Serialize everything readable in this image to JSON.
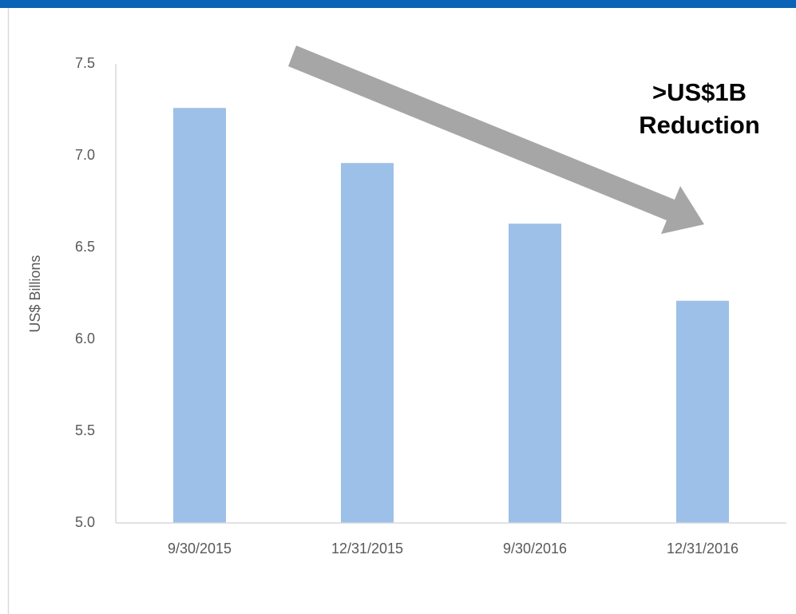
{
  "chart_data": {
    "type": "bar",
    "y_label": "US$ Billions",
    "annotation": [
      ">US$1B",
      "Reduction"
    ],
    "categories": [
      "9/30/2015",
      "12/31/2015",
      "9/30/2016",
      "12/31/2016"
    ],
    "values": [
      7.26,
      6.96,
      6.63,
      6.21
    ],
    "color": "#9dc0e8",
    "ylim": [
      5.0,
      7.5
    ],
    "yticks": [
      {
        "value": 5.0,
        "label": "5.0"
      },
      5.5,
      {
        "value": 6.0,
        "label": "6.0"
      },
      6.5,
      {
        "value": 7.0,
        "label": "7.0"
      },
      7.5
    ],
    "grid": false
  }
}
